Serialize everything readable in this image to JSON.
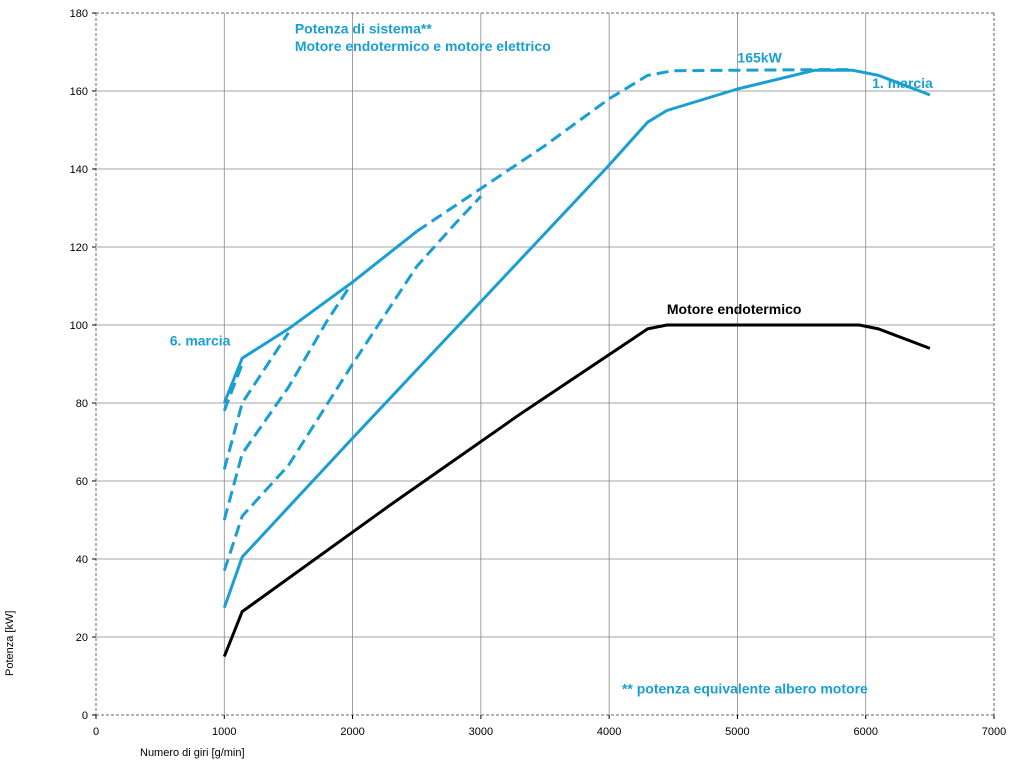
{
  "chart_data": {
    "type": "line",
    "xlabel": "Numero di giri [g/min]",
    "ylabel": "Potenza [kW]",
    "xlim": [
      0,
      7000
    ],
    "ylim": [
      0,
      180
    ],
    "x_ticks": [
      0,
      1000,
      2000,
      3000,
      4000,
      5000,
      6000,
      7000
    ],
    "y_ticks": [
      0,
      20,
      40,
      60,
      80,
      100,
      120,
      140,
      160,
      180
    ],
    "grid": true,
    "colors": {
      "blue": "#1a9fd3",
      "black": "#000000",
      "grid": "#888888"
    },
    "series": [
      {
        "style": "solid",
        "color": "#000000",
        "points": [
          [
            1000,
            15
          ],
          [
            1140,
            26.5
          ],
          [
            2300,
            54
          ],
          [
            3300,
            77
          ],
          [
            4300,
            99
          ],
          [
            4450,
            100
          ],
          [
            5950,
            100
          ],
          [
            6100,
            99
          ],
          [
            6500,
            94
          ]
        ]
      },
      {
        "style": "solid",
        "color": "#1a9fd3",
        "points": [
          [
            1000,
            27.5
          ],
          [
            1140,
            40.5
          ],
          [
            2000,
            71
          ],
          [
            3000,
            106
          ],
          [
            4000,
            141
          ],
          [
            4300,
            152
          ],
          [
            4450,
            155
          ],
          [
            5000,
            160.5
          ],
          [
            5600,
            165.3
          ],
          [
            5900,
            165.3
          ],
          [
            6100,
            164
          ],
          [
            6500,
            159
          ]
        ]
      },
      {
        "style": "dashed",
        "color": "#1a9fd3",
        "points": [
          [
            1000,
            37
          ],
          [
            1140,
            51
          ],
          [
            1500,
            64
          ],
          [
            2000,
            90
          ],
          [
            2500,
            115
          ],
          [
            2800,
            126
          ],
          [
            3000,
            133
          ]
        ]
      },
      {
        "style": "dashed",
        "color": "#1a9fd3",
        "points": [
          [
            1000,
            50
          ],
          [
            1140,
            67
          ],
          [
            1500,
            84
          ],
          [
            1800,
            101
          ],
          [
            2000,
            111
          ]
        ]
      },
      {
        "style": "dashed",
        "color": "#1a9fd3",
        "points": [
          [
            1000,
            63
          ],
          [
            1140,
            80
          ],
          [
            1500,
            98
          ]
        ]
      },
      {
        "style": "dashed",
        "color": "#1a9fd3",
        "points": [
          [
            1000,
            78
          ],
          [
            1140,
            90
          ]
        ]
      },
      {
        "style": "solid",
        "color": "#1a9fd3",
        "points": [
          [
            1000,
            80
          ],
          [
            1140,
            91.5
          ],
          [
            1500,
            99
          ],
          [
            2000,
            111
          ],
          [
            2500,
            124
          ]
        ]
      },
      {
        "style": "dashed",
        "color": "#1a9fd3",
        "points": [
          [
            2500,
            124
          ],
          [
            3000,
            135
          ],
          [
            3500,
            146
          ],
          [
            4000,
            158
          ],
          [
            4300,
            164
          ],
          [
            4500,
            165.2
          ],
          [
            5700,
            165.5
          ],
          [
            5900,
            165.5
          ]
        ]
      }
    ],
    "annotations": [
      {
        "key": "system_power_1",
        "text": "Potenza di sistema**",
        "x": 1550,
        "y": 174.8,
        "color": "blue"
      },
      {
        "key": "system_power_2",
        "text": "Motore endotermico e motore elettrico",
        "x": 1550,
        "y": 170.3,
        "color": "blue"
      },
      {
        "key": "peak",
        "text": "165kW",
        "x": 5000,
        "y": 167.3,
        "color": "blue"
      },
      {
        "key": "first_gear",
        "text": "1. marcia",
        "x": 6050,
        "y": 160.8,
        "color": "blue"
      },
      {
        "key": "sixth_gear",
        "text": "6. marcia",
        "x": 575,
        "y": 94.8,
        "color": "blue"
      },
      {
        "key": "ice",
        "text": "Motore endotermico",
        "x": 4450,
        "y": 102.8,
        "color": "black"
      },
      {
        "key": "footnote",
        "text": "** potenza equivalente albero motore",
        "x": 4100,
        "y": 5.5,
        "color": "blue"
      }
    ]
  }
}
